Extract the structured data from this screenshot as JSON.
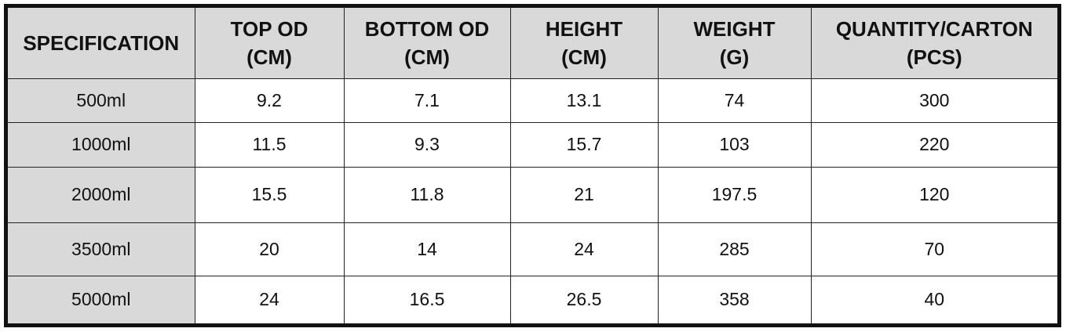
{
  "table": {
    "header": [
      [
        "SPECIFICATION"
      ],
      [
        "TOP OD",
        "(CM)"
      ],
      [
        "BOTTOM OD",
        "(CM)"
      ],
      [
        "HEIGHT",
        "(CM)"
      ],
      [
        "WEIGHT",
        "(G)"
      ],
      [
        "QUANTITY/CARTON",
        "(PCS)"
      ]
    ],
    "rows": [
      [
        "500ml",
        "9.2",
        "7.1",
        "13.1",
        "74",
        "300"
      ],
      [
        "1000ml",
        "11.5",
        "9.3",
        "15.7",
        "103",
        "220"
      ],
      [
        "2000ml",
        "15.5",
        "11.8",
        "21",
        "197.5",
        "120"
      ],
      [
        "3500ml",
        "20",
        "14",
        "24",
        "285",
        "70"
      ],
      [
        "5000ml",
        "24",
        "16.5",
        "26.5",
        "358",
        "40"
      ]
    ]
  }
}
